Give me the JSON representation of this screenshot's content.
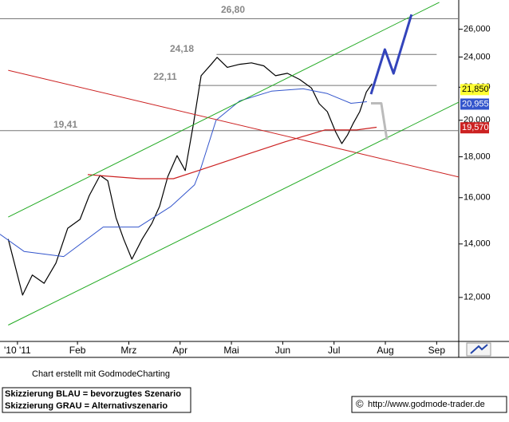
{
  "chart_data": {
    "type": "line",
    "log_scale": true,
    "xlim": [
      0.49,
      9.43
    ],
    "xticks": [
      {
        "value": 0.83,
        "label": "'10 '11"
      },
      {
        "value": 2,
        "label": "Feb"
      },
      {
        "value": 3,
        "label": "Mrz"
      },
      {
        "value": 4,
        "label": "Apr"
      },
      {
        "value": 5,
        "label": "Mai"
      },
      {
        "value": 6,
        "label": "Jun"
      },
      {
        "value": 7,
        "label": "Jul"
      },
      {
        "value": 8,
        "label": "Aug"
      },
      {
        "value": 9,
        "label": "Sep"
      }
    ],
    "ylim": [
      10570,
      28290
    ],
    "yticks": [
      {
        "value": 12000,
        "label": "12,000"
      },
      {
        "value": 14000,
        "label": "14,000"
      },
      {
        "value": 16000,
        "label": "16,000"
      },
      {
        "value": 18000,
        "label": "18,000"
      },
      {
        "value": 20000,
        "label": "20,000"
      },
      {
        "value": 22000,
        "label": "22,000"
      },
      {
        "value": 24000,
        "label": "24,000"
      },
      {
        "value": 26000,
        "label": "26,000"
      }
    ],
    "series": [
      {
        "color": "#000000",
        "width": 1.2,
        "x": [
          0.65,
          0.93,
          1.12,
          1.35,
          1.58,
          1.81,
          2.05,
          2.23,
          2.44,
          2.59,
          2.75,
          2.9,
          3.06,
          3.26,
          3.45,
          3.6,
          3.76,
          3.94,
          4.1,
          4.26,
          4.41,
          4.61,
          4.72,
          4.92,
          5.16,
          5.39,
          5.63,
          5.86,
          6.09,
          6.33,
          6.56,
          6.71,
          6.87,
          7.03,
          7.15,
          7.26,
          7.37,
          7.5,
          7.63,
          7.74
        ],
        "values": [
          14200,
          12080,
          12800,
          12500,
          13250,
          14650,
          15030,
          16100,
          17060,
          16800,
          15100,
          14200,
          13400,
          14200,
          14860,
          15600,
          17000,
          18060,
          17300,
          19800,
          22740,
          23520,
          23980,
          23300,
          23500,
          23600,
          23400,
          22740,
          22900,
          22500,
          21950,
          20980,
          20500,
          19350,
          18700,
          19150,
          19800,
          20500,
          21700,
          22220
        ]
      },
      {
        "color": "#3355cc",
        "width": 1,
        "x": [
          0.49,
          0.96,
          1.73,
          2.5,
          3.19,
          3.82,
          4.28,
          4.39,
          4.7,
          5.16,
          5.78,
          6.4,
          6.87,
          7.33,
          7.64
        ],
        "values": [
          14400,
          13700,
          13500,
          14700,
          14700,
          15600,
          16600,
          17300,
          20000,
          21150,
          21750,
          21900,
          21600,
          21000,
          21100
        ]
      },
      {
        "color": "#cc2222",
        "width": 1.2,
        "x": [
          2.2,
          3.22,
          3.87,
          4.65,
          5.27,
          6.05,
          6.82,
          7.44,
          7.83
        ],
        "values": [
          17100,
          16900,
          16900,
          17550,
          18100,
          18800,
          19450,
          19450,
          19600
        ]
      },
      {
        "color": "#cc2222",
        "width": 1,
        "x": [
          0.65,
          9.43
        ],
        "values": [
          23100,
          16980
        ]
      },
      {
        "color": "#22aa22",
        "width": 1,
        "x": [
          0.65,
          9.05
        ],
        "values": [
          15130,
          28100
        ]
      },
      {
        "color": "#22aa22",
        "width": 1,
        "x": [
          0.65,
          9.43
        ],
        "values": [
          11080,
          21070
        ]
      },
      {
        "color": "#3344bb",
        "width": 3,
        "x": [
          7.72,
          7.99,
          8.16,
          8.51
        ],
        "values": [
          21560,
          24530,
          22890,
          27130
        ]
      },
      {
        "color": "#bbbbbb",
        "width": 3,
        "x": [
          7.72,
          7.92,
          8.03
        ],
        "values": [
          21000,
          21000,
          18910
        ]
      }
    ],
    "levels": [
      {
        "value": 26800,
        "label": "26,80",
        "x": [
          0.49,
          9.43
        ]
      },
      {
        "value": 24180,
        "label": "24,18",
        "x": [
          4.71,
          9.0
        ]
      },
      {
        "value": 22110,
        "label": "22,11",
        "x": [
          4.35,
          9.0
        ]
      },
      {
        "value": 19410,
        "label": "19,41",
        "x": [
          0.49,
          9.43
        ]
      }
    ],
    "price_labels": [
      {
        "value": 21850,
        "label": "21,850",
        "color": "#ffff33",
        "text_color": "#000000"
      },
      {
        "value": 20955,
        "label": "20,955",
        "color": "#3355cc",
        "text_color": "#ffffff"
      },
      {
        "value": 19570,
        "label": "19,570",
        "color": "#cc2222",
        "text_color": "#ffffff"
      }
    ]
  },
  "footer": {
    "credit": "Chart erstellt mit GodmodeCharting",
    "legend": [
      "Skizzierung BLAU = bevorzugtes Szenario",
      "Skizzierung GRAU = Alternativszenario"
    ],
    "copyright": "©",
    "url": "http://www.godmode-trader.de"
  }
}
